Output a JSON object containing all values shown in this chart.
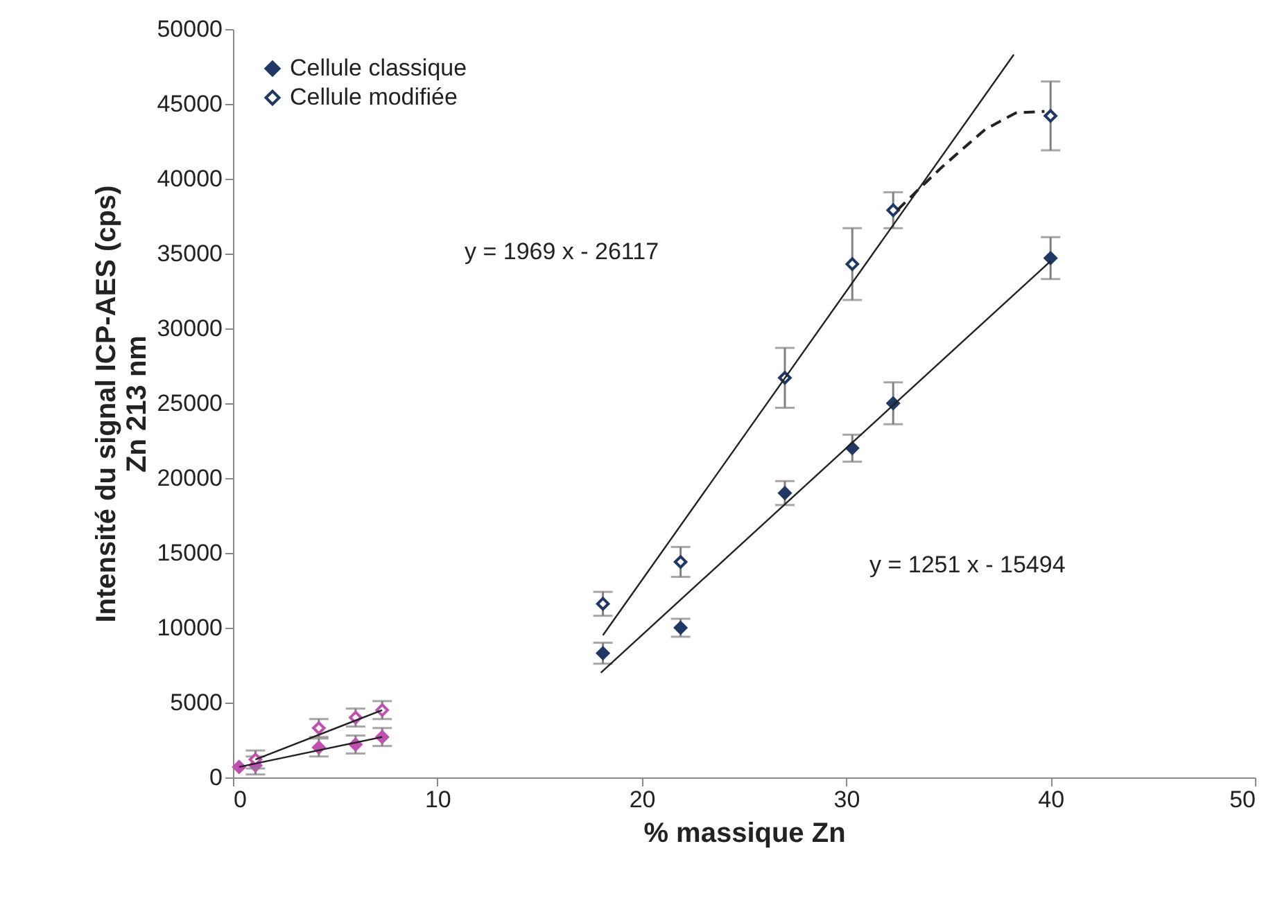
{
  "chart_data": {
    "type": "scatter",
    "xlabel": "% massique Zn",
    "ylabel": "Intensité du signal ICP-AES (cps)\nZn 213 nm",
    "xlim": [
      0,
      50
    ],
    "xticks": [
      0,
      10,
      20,
      30,
      40,
      50
    ],
    "ylim": [
      0,
      50000
    ],
    "yticks": [
      0,
      5000,
      10000,
      15000,
      20000,
      25000,
      30000,
      35000,
      40000,
      45000,
      50000
    ],
    "grid": false,
    "legend": "top left",
    "marker": "diamond",
    "series": [
      {
        "name": "Cellule classique",
        "color": "#1f3864",
        "x": [
          18.1,
          21.9,
          27,
          30.3,
          32.3,
          40
        ],
        "values": [
          8300,
          10000,
          19000,
          22000,
          25000,
          34700
        ],
        "errors": [
          700,
          600,
          800,
          900,
          1400,
          1400
        ]
      },
      {
        "name": "Cellule modifiée",
        "color": "#1f3864",
        "x": [
          18.1,
          21.9,
          27,
          30.3,
          32.3,
          40
        ],
        "values": [
          11600,
          14400,
          26700,
          34300,
          37900,
          44200
        ],
        "errors": [
          800,
          1000,
          2000,
          2400,
          1200,
          2300
        ]
      },
      {
        "color": "#c050b0",
        "x": [
          0.3,
          1.1,
          4.2,
          6,
          7.3
        ],
        "values": [
          700,
          800,
          2000,
          2200,
          2700
        ],
        "errors": [
          null,
          600,
          600,
          600,
          600
        ]
      },
      {
        "color": "#c050b0",
        "x": [
          1.1,
          4.2,
          6,
          7.3
        ],
        "values": [
          1200,
          3300,
          4000,
          4500
        ],
        "errors": [
          600,
          600,
          600,
          600
        ]
      },
      {
        "type": "line",
        "marker": "none",
        "color": "#222222",
        "x": [
          18,
          40
        ],
        "values": [
          7000,
          34500
        ]
      },
      {
        "type": "line",
        "marker": "none",
        "color": "#222222",
        "x": [
          18.1,
          38.2
        ],
        "values": [
          9500,
          48300
        ]
      },
      {
        "type": "line",
        "marker": "none",
        "color": "#222222",
        "line_style": "dashed",
        "x": [
          32.5,
          33.4,
          34.7,
          36.8,
          38.3,
          39.7
        ],
        "values": [
          37900,
          39100,
          40800,
          43300,
          44400,
          44500
        ]
      },
      {
        "type": "line",
        "marker": "none",
        "color": "#222222",
        "x": [
          0.3,
          7.3
        ],
        "values": [
          700,
          2700
        ]
      },
      {
        "type": "line",
        "marker": "none",
        "color": "#222222",
        "x": [
          1.1,
          7.3
        ],
        "values": [
          1200,
          4500
        ]
      }
    ],
    "annotations": [
      "y = 1969 x - 26117",
      "y = 1251 x - 15494"
    ]
  }
}
